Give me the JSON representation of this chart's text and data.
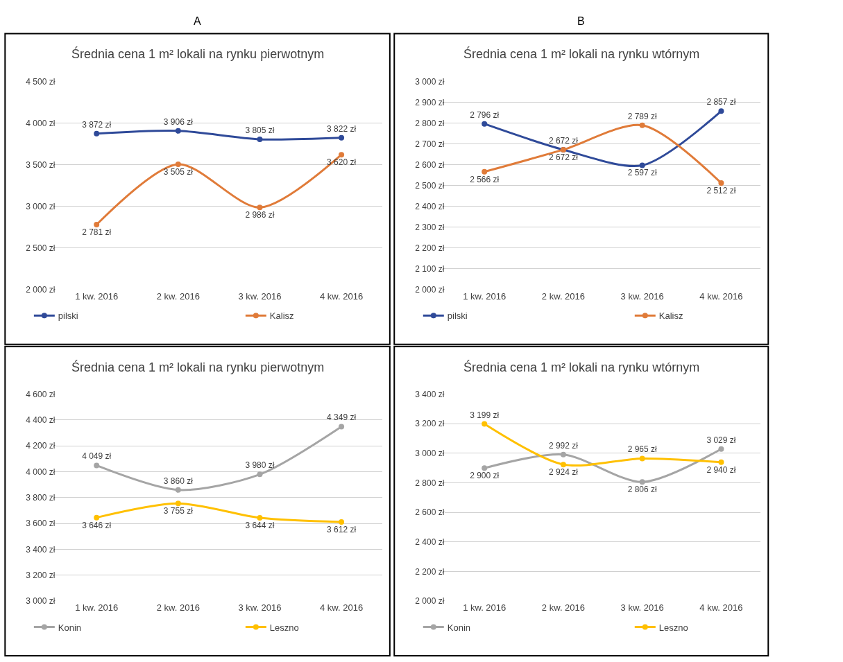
{
  "chart_data": [
    {
      "type": "line",
      "title": "Średnia cena 1 m² lokali na rynku pierwotnym",
      "annotations": [
        "A"
      ],
      "categories": [
        "1 kw. 2016",
        "2 kw. 2016",
        "3 kw. 2016",
        "4 kw. 2016"
      ],
      "series": [
        {
          "name": "pilski",
          "color": "#2f4a99",
          "values": [
            3872,
            3906,
            3805,
            3822
          ],
          "value_labels": [
            "3 872 zł",
            "3 906 zł",
            "3 805 zł",
            "3 822 zł"
          ]
        },
        {
          "name": "Kalisz",
          "color": "#e07b39",
          "values": [
            2781,
            3505,
            2986,
            3620
          ],
          "value_labels": [
            "2 781 zł",
            "3 505 zł",
            "2 986 zł",
            "3 620 zł"
          ]
        }
      ],
      "ylim": [
        2000,
        4500
      ],
      "yticks": [
        {
          "value": 2000,
          "label": "2 000 zł"
        },
        {
          "value": 2500,
          "label": "2 500 zł"
        },
        {
          "value": 3000,
          "label": "3 000 zł"
        },
        {
          "value": 3500,
          "label": "3 500 zł"
        },
        {
          "value": 4000,
          "label": "4 000 zł"
        },
        {
          "value": 4500,
          "label": "4 500 zł"
        }
      ],
      "grid": "y",
      "legend": "bottom",
      "marker": "circle"
    },
    {
      "type": "line",
      "title": "Średnia cena 1 m² lokali na rynku wtórnym",
      "annotations": [
        "B"
      ],
      "categories": [
        "1 kw. 2016",
        "2 kw. 2016",
        "3 kw. 2016",
        "4 kw. 2016"
      ],
      "series": [
        {
          "name": "pilski",
          "color": "#2f4a99",
          "values": [
            2796,
            2672,
            2597,
            2857
          ],
          "value_labels": [
            "2 796 zł",
            "2 672 zł",
            "2 597 zł",
            "2 857 zł"
          ]
        },
        {
          "name": "Kalisz",
          "color": "#e07b39",
          "values": [
            2566,
            2672,
            2789,
            2512
          ],
          "value_labels": [
            "2 566 zł",
            "2 672 zł",
            "2 789 zł",
            "2 512 zł"
          ]
        }
      ],
      "ylim": [
        2000,
        3000
      ],
      "yticks": [
        {
          "value": 2000,
          "label": "2 000 zł"
        },
        {
          "value": 2100,
          "label": "2 100 zł"
        },
        {
          "value": 2200,
          "label": "2 200 zł"
        },
        {
          "value": 2300,
          "label": "2 300 zł"
        },
        {
          "value": 2400,
          "label": "2 400 zł"
        },
        {
          "value": 2500,
          "label": "2 500 zł"
        },
        {
          "value": 2600,
          "label": "2 600 zł"
        },
        {
          "value": 2700,
          "label": "2 700 zł"
        },
        {
          "value": 2800,
          "label": "2 800 zł"
        },
        {
          "value": 2900,
          "label": "2 900 zł"
        },
        {
          "value": 3000,
          "label": "3 000 zł"
        }
      ],
      "grid": "y",
      "legend": "bottom",
      "marker": "circle"
    },
    {
      "type": "line",
      "title": "Średnia cena 1 m² lokali na rynku pierwotnym",
      "categories": [
        "1 kw. 2016",
        "2 kw. 2016",
        "3 kw. 2016",
        "4 kw. 2016"
      ],
      "series": [
        {
          "name": "Konin",
          "color": "#a5a5a5",
          "values": [
            4049,
            3860,
            3980,
            4349
          ],
          "value_labels": [
            "4 049 zł",
            "3 860 zł",
            "3 980 zł",
            "4 349 zł"
          ]
        },
        {
          "name": "Leszno",
          "color": "#ffc000",
          "values": [
            3646,
            3755,
            3644,
            3612
          ],
          "value_labels": [
            "3 646 zł",
            "3 755 zł",
            "3 644 zł",
            "3 612 zł"
          ]
        }
      ],
      "ylim": [
        3000,
        4600
      ],
      "yticks": [
        {
          "value": 3000,
          "label": "3 000 zł"
        },
        {
          "value": 3200,
          "label": "3 200 zł"
        },
        {
          "value": 3400,
          "label": "3 400 zł"
        },
        {
          "value": 3600,
          "label": "3 600 zł"
        },
        {
          "value": 3800,
          "label": "3 800 zł"
        },
        {
          "value": 4000,
          "label": "4 000 zł"
        },
        {
          "value": 4200,
          "label": "4 200 zł"
        },
        {
          "value": 4400,
          "label": "4 400 zł"
        },
        {
          "value": 4600,
          "label": "4 600 zł"
        }
      ],
      "grid": "y",
      "legend": "bottom",
      "marker": "circle"
    },
    {
      "type": "line",
      "title": "Średnia cena 1 m² lokali na rynku wtórnym",
      "categories": [
        "1 kw. 2016",
        "2 kw. 2016",
        "3 kw. 2016",
        "4 kw. 2016"
      ],
      "series": [
        {
          "name": "Konin",
          "color": "#a5a5a5",
          "values": [
            2900,
            2992,
            2806,
            3029
          ],
          "value_labels": [
            "2 900 zł",
            "2 992 zł",
            "2 806 zł",
            "3 029 zł"
          ]
        },
        {
          "name": "Leszno",
          "color": "#ffc000",
          "values": [
            3199,
            2924,
            2965,
            2940
          ],
          "value_labels": [
            "3 199 zł",
            "2 924 zł",
            "2 965 zł",
            "2 940 zł"
          ]
        }
      ],
      "ylim": [
        2000,
        3400
      ],
      "yticks": [
        {
          "value": 2000,
          "label": "2 000 zł"
        },
        {
          "value": 2200,
          "label": "2 200 zł"
        },
        {
          "value": 2400,
          "label": "2 400 zł"
        },
        {
          "value": 2600,
          "label": "2 600 zł"
        },
        {
          "value": 2800,
          "label": "2 800 zł"
        },
        {
          "value": 3000,
          "label": "3 000 zł"
        },
        {
          "value": 3200,
          "label": "3 200 zł"
        },
        {
          "value": 3400,
          "label": "3 400 zł"
        }
      ],
      "grid": "y",
      "legend": "bottom",
      "marker": "circle"
    }
  ]
}
